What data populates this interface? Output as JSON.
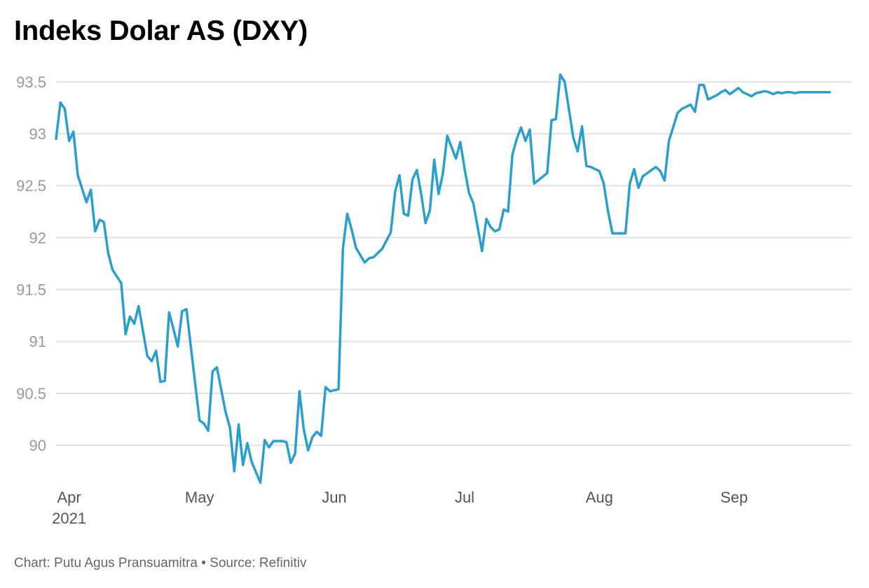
{
  "footer": {
    "chart_by_label": "Chart: Putu Agus Pransuamitra",
    "separator": "•",
    "source_label": "Source: Refinitiv"
  },
  "chart_data": {
    "type": "line",
    "title": "Indeks Dolar AS (DXY)",
    "xlabel": "",
    "ylabel": "",
    "ylim": [
      89.65,
      93.6
    ],
    "y_ticks": [
      90,
      90.5,
      91,
      91.5,
      92,
      92.5,
      93,
      93.5
    ],
    "y_tick_labels": [
      "90",
      "90.5",
      "91",
      "91.5",
      "92",
      "92.5",
      "93",
      "93.5"
    ],
    "x_ticks": [
      {
        "day": 0,
        "label": "Apr",
        "sublabel": "2021"
      },
      {
        "day": 30,
        "label": "May"
      },
      {
        "day": 61,
        "label": "Jun"
      },
      {
        "day": 91,
        "label": "Jul"
      },
      {
        "day": 122,
        "label": "Aug"
      },
      {
        "day": 153,
        "label": "Sep"
      }
    ],
    "xlim": [
      -3,
      180
    ],
    "grid": true,
    "line_color": "#2a9fcf",
    "series": [
      {
        "name": "DXY",
        "x": [
          -3,
          -2,
          -1,
          0,
          1,
          2,
          4,
          5,
          6,
          7,
          8,
          9,
          10,
          12,
          13,
          14,
          15,
          16,
          18,
          19,
          20,
          21,
          22,
          23,
          24,
          25,
          26,
          27,
          28,
          30,
          31,
          32,
          33,
          34,
          36,
          37,
          38,
          39,
          40,
          41,
          42,
          44,
          45,
          46,
          47,
          48,
          49,
          50,
          51,
          52,
          53,
          54,
          55,
          56,
          57,
          58,
          59,
          60,
          62,
          63,
          64,
          65,
          66,
          68,
          69,
          70,
          71,
          72,
          74,
          75,
          76,
          77,
          78,
          79,
          80,
          81,
          82,
          83,
          84,
          85,
          86,
          87,
          89,
          90,
          91,
          92,
          93,
          95,
          96,
          97,
          98,
          99,
          100,
          101,
          102,
          103,
          104,
          105,
          106,
          107,
          110,
          111,
          112,
          113,
          114,
          116,
          117,
          118,
          119,
          120,
          121,
          122,
          123,
          124,
          125,
          126,
          127,
          128,
          129,
          130,
          131,
          132,
          133,
          134,
          135,
          136,
          137,
          138,
          140,
          141,
          142,
          143,
          144,
          145,
          146,
          147,
          148,
          149,
          150,
          151,
          152,
          153,
          154,
          155,
          156,
          157,
          158,
          159,
          160,
          161,
          162,
          163,
          164,
          165,
          166,
          167,
          168,
          169,
          170,
          171,
          172,
          173,
          174,
          175
        ],
        "y": [
          92.95,
          93.3,
          93.24,
          92.93,
          93.02,
          92.6,
          92.34,
          92.46,
          92.06,
          92.17,
          92.15,
          91.85,
          91.69,
          91.56,
          91.07,
          91.24,
          91.17,
          91.34,
          90.86,
          90.81,
          90.91,
          90.61,
          90.62,
          91.28,
          91.12,
          90.95,
          91.29,
          91.31,
          90.95,
          90.24,
          90.21,
          90.14,
          90.71,
          90.75,
          90.32,
          90.17,
          89.75,
          90.2,
          89.81,
          90.02,
          89.84,
          89.64,
          90.05,
          89.98,
          90.04,
          90.04,
          90.04,
          90.03,
          89.83,
          89.92,
          90.52,
          90.15,
          89.95,
          90.08,
          90.13,
          90.09,
          90.56,
          90.52,
          90.54,
          91.89,
          92.23,
          92.08,
          91.9,
          91.76,
          91.8,
          91.81,
          91.85,
          91.89,
          92.05,
          92.44,
          92.6,
          92.23,
          92.21,
          92.56,
          92.65,
          92.42,
          92.14,
          92.26,
          92.75,
          92.42,
          92.62,
          92.98,
          92.76,
          92.92,
          92.66,
          92.43,
          92.33,
          91.87,
          92.18,
          92.1,
          92.06,
          92.08,
          92.27,
          92.25,
          92.8,
          92.95,
          93.06,
          92.93,
          93.04,
          92.52,
          92.62,
          93.13,
          93.14,
          93.57,
          93.5,
          92.96,
          92.83,
          93.07,
          92.69,
          92.68,
          92.66,
          92.64,
          92.52,
          92.25,
          92.04,
          92.04,
          92.04,
          92.04,
          92.52,
          92.66,
          92.48,
          92.59,
          92.62,
          92.65,
          92.68,
          92.64,
          92.55,
          92.93,
          93.2,
          93.24,
          93.26,
          93.28,
          93.21,
          93.47,
          93.47,
          93.33,
          93.35,
          93.37,
          93.4,
          93.42,
          93.38,
          93.41,
          93.44,
          93.4,
          93.38,
          93.36,
          93.39,
          93.4,
          93.41,
          93.4,
          93.38,
          93.4,
          93.39,
          93.4,
          93.4,
          93.39,
          93.4,
          93.4,
          93.4,
          93.4,
          93.4,
          93.4,
          93.4,
          93.4
        ]
      }
    ]
  }
}
